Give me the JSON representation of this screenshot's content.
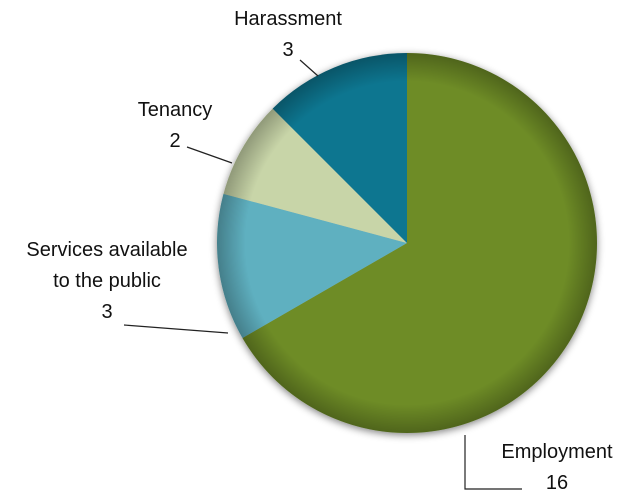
{
  "chart_data": {
    "type": "pie",
    "categories": [
      "Employment",
      "Services available\nto the public",
      "Tenancy",
      "Harassment"
    ],
    "values": [
      16,
      3,
      2,
      3
    ],
    "colors": [
      "#6e8c28",
      "#5fb0c0",
      "#c8d5a8",
      "#0f7690"
    ]
  }
}
